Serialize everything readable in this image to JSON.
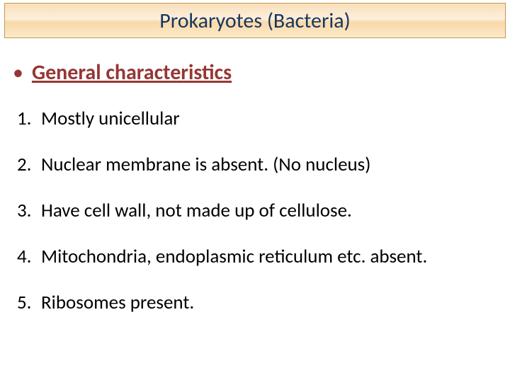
{
  "title": {
    "text": "Prokaryotes (Bacteria)",
    "color": "#17365d",
    "fontsize": 30,
    "background_gradient": [
      "#fadfb9",
      "#fcefdc",
      "#f9d9a8",
      "#fce9c9"
    ],
    "border_color": "#c29a52"
  },
  "heading": {
    "bullet": "•",
    "text": "General characteristics",
    "color": "#953735",
    "fontsize": 30,
    "underline": true,
    "bold": true
  },
  "items": [
    {
      "num": "1.",
      "text": "Mostly unicellular"
    },
    {
      "num": "2.",
      "text": "Nuclear membrane is absent. (No nucleus)"
    },
    {
      "num": "3.",
      "text": "Have cell wall, not made up of cellulose."
    },
    {
      "num": "4.",
      "text": "Mitochondria, endoplasmic reticulum etc. absent."
    },
    {
      "num": "5.",
      "text": "Ribosomes present."
    }
  ],
  "list_style": {
    "fontsize": 27,
    "color": "#000000"
  },
  "background_color": "#ffffff"
}
